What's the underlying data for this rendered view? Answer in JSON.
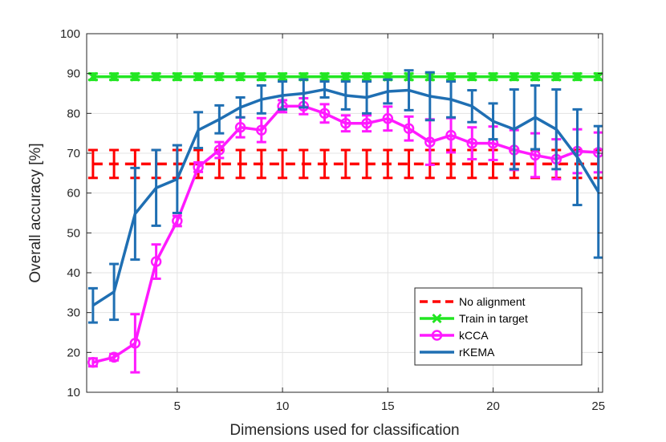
{
  "chart_data": {
    "type": "line",
    "title": "",
    "xlabel": "Dimensions used for classification",
    "ylabel": "Overall accuracy [%]",
    "xlim": [
      0.7,
      25.2
    ],
    "ylim": [
      10,
      100
    ],
    "xticks": [
      5,
      10,
      15,
      20,
      25
    ],
    "yticks": [
      10,
      20,
      30,
      40,
      50,
      60,
      70,
      80,
      90,
      100
    ],
    "grid": true,
    "legend_position": "bottom-right",
    "series": [
      {
        "name": "No alignment",
        "color": "#ff0000",
        "style": "dashed",
        "marker": "none",
        "x": [
          1,
          2,
          3,
          4,
          5,
          6,
          7,
          8,
          9,
          10,
          11,
          12,
          13,
          14,
          15,
          16,
          17,
          18,
          19,
          20,
          21,
          22,
          23,
          24,
          25
        ],
        "y": [
          67.3,
          67.3,
          67.3,
          67.3,
          67.3,
          67.3,
          67.3,
          67.3,
          67.3,
          67.3,
          67.3,
          67.3,
          67.3,
          67.3,
          67.3,
          67.3,
          67.3,
          67.3,
          67.3,
          67.3,
          67.3,
          67.3,
          67.3,
          67.3,
          67.3
        ],
        "err": [
          3.5,
          3.5,
          3.5,
          3.5,
          3.5,
          3.5,
          3.5,
          3.5,
          3.5,
          3.5,
          3.5,
          3.5,
          3.5,
          3.5,
          3.5,
          3.5,
          3.5,
          3.5,
          3.5,
          3.5,
          3.5,
          3.5,
          3.5,
          3.5,
          3.5
        ]
      },
      {
        "name": "Train in target",
        "color": "#22e622",
        "style": "solid",
        "marker": "x",
        "x": [
          1,
          2,
          3,
          4,
          5,
          6,
          7,
          8,
          9,
          10,
          11,
          12,
          13,
          14,
          15,
          16,
          17,
          18,
          19,
          20,
          21,
          22,
          23,
          24,
          25
        ],
        "y": [
          89.2,
          89.2,
          89.2,
          89.2,
          89.2,
          89.2,
          89.2,
          89.2,
          89.2,
          89.2,
          89.2,
          89.2,
          89.2,
          89.2,
          89.2,
          89.2,
          89.2,
          89.2,
          89.2,
          89.2,
          89.2,
          89.2,
          89.2,
          89.2,
          89.2
        ],
        "err": [
          0.8,
          0.8,
          0.8,
          0.8,
          0.8,
          0.8,
          0.8,
          0.8,
          0.8,
          0.8,
          0.8,
          0.8,
          0.8,
          0.8,
          0.8,
          0.8,
          0.8,
          0.8,
          0.8,
          0.8,
          0.8,
          0.8,
          0.8,
          0.8,
          0.8
        ]
      },
      {
        "name": "kCCA",
        "color": "#ff1aff",
        "style": "solid",
        "marker": "o",
        "x": [
          1,
          2,
          3,
          4,
          5,
          6,
          7,
          8,
          9,
          10,
          11,
          12,
          13,
          14,
          15,
          16,
          17,
          18,
          19,
          20,
          21,
          22,
          23,
          24,
          25
        ],
        "y": [
          17.5,
          18.8,
          22.3,
          42.8,
          53.0,
          66.5,
          70.8,
          76.5,
          75.8,
          81.8,
          81.8,
          80.0,
          77.5,
          77.5,
          78.7,
          76.2,
          72.8,
          74.5,
          72.5,
          72.5,
          70.8,
          69.5,
          68.5,
          70.5,
          70.2
        ],
        "err": [
          1.0,
          0.8,
          7.3,
          4.3,
          1.3,
          1.2,
          2.0,
          2.5,
          3.0,
          1.5,
          2.0,
          2.3,
          2.0,
          2.0,
          3.0,
          3.0,
          5.7,
          4.3,
          4.0,
          4.2,
          5.0,
          5.5,
          5.0,
          5.5,
          5.0
        ]
      },
      {
        "name": "rKEMA",
        "color": "#1f6fb3",
        "style": "solid",
        "marker": "none",
        "x": [
          1,
          2,
          3,
          4,
          5,
          6,
          7,
          8,
          9,
          10,
          11,
          12,
          13,
          14,
          15,
          16,
          17,
          18,
          19,
          20,
          21,
          22,
          23,
          24,
          25
        ],
        "y": [
          31.8,
          35.2,
          54.8,
          61.3,
          63.5,
          75.8,
          78.5,
          81.5,
          83.5,
          84.5,
          85.0,
          86.0,
          84.5,
          84.0,
          85.5,
          85.8,
          84.3,
          83.5,
          81.8,
          78.0,
          76.0,
          79.0,
          76.0,
          69.0,
          60.3
        ],
        "err": [
          4.3,
          7.0,
          11.5,
          9.5,
          8.5,
          4.5,
          3.5,
          2.5,
          3.5,
          3.5,
          3.5,
          2.0,
          3.5,
          4.0,
          3.0,
          5.0,
          6.0,
          4.5,
          4.0,
          4.5,
          10.0,
          8.0,
          10.0,
          12.0,
          16.5
        ]
      }
    ]
  }
}
